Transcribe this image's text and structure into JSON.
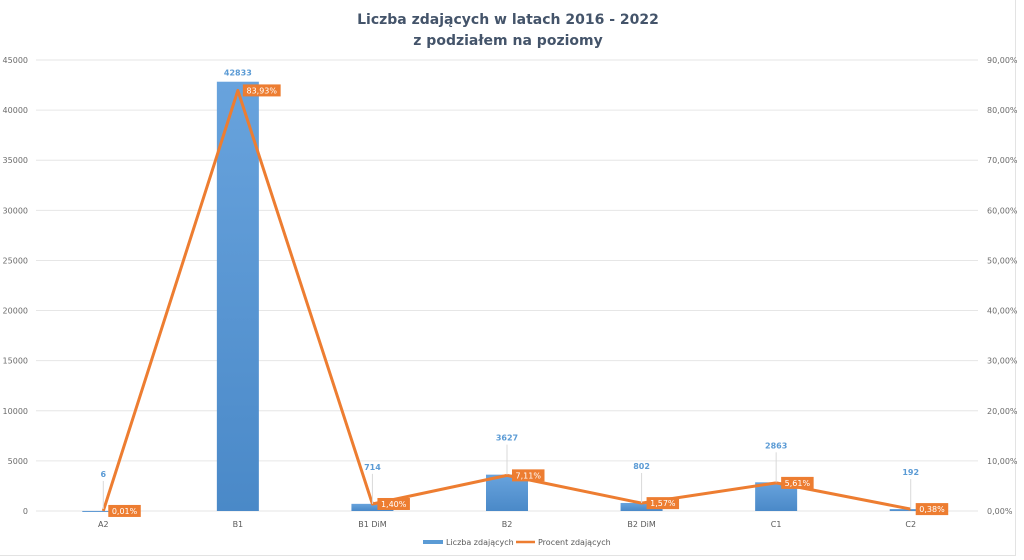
{
  "chart_data": {
    "type": "bar",
    "title": "Liczba zdających w latach 2016 - 2022",
    "subtitle": "z podziałem na poziomy",
    "categories": [
      "A2",
      "B1",
      "B1 DiM",
      "B2",
      "B2 DiM",
      "C1",
      "C2"
    ],
    "series": [
      {
        "name": "Liczba zdających",
        "type": "bar",
        "axis": "left",
        "color": "#5b9bd5",
        "values": [
          6,
          42833,
          714,
          3627,
          802,
          2863,
          192
        ],
        "labels": [
          "6",
          "42833",
          "714",
          "3627",
          "802",
          "2863",
          "192"
        ]
      },
      {
        "name": "Procent zdających",
        "type": "line",
        "axis": "right",
        "color": "#ed7d31",
        "values": [
          0.01,
          83.93,
          1.4,
          7.11,
          1.57,
          5.61,
          0.38
        ],
        "labels": [
          "0,01%",
          "83,93%",
          "1,40%",
          "7,11%",
          "1,57%",
          "5,61%",
          "0,38%"
        ]
      }
    ],
    "y_left": {
      "range": [
        0,
        45000
      ],
      "ticks": [
        "0",
        "5000",
        "10000",
        "15000",
        "20000",
        "25000",
        "30000",
        "35000",
        "40000",
        "45000"
      ]
    },
    "y_right": {
      "range": [
        0,
        90
      ],
      "ticks": [
        "0,00%",
        "10,00%",
        "20,00%",
        "30,00%",
        "40,00%",
        "50,00%",
        "60,00%",
        "70,00%",
        "80,00%",
        "90,00%"
      ]
    },
    "grid": true,
    "legend": {
      "position": "bottom",
      "entries": [
        "Liczba zdających",
        "Procent zdających"
      ]
    }
  }
}
